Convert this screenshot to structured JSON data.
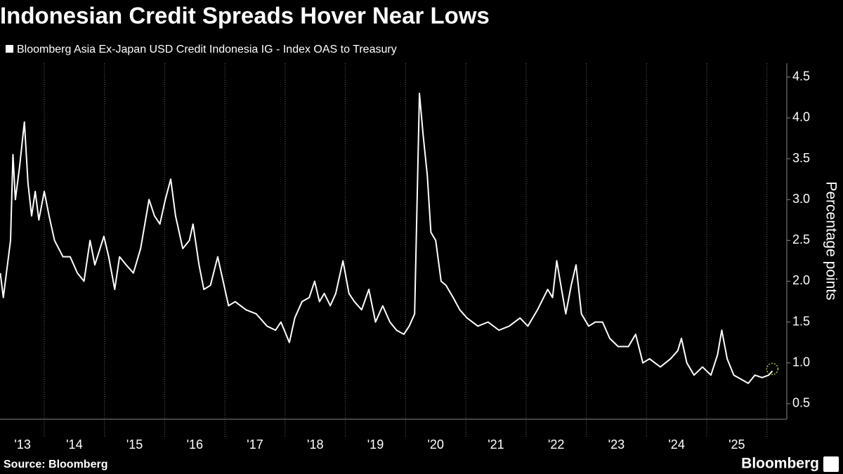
{
  "chart_data": {
    "type": "line",
    "title": "Indonesian Credit Spreads Hover Near Lows",
    "y_label": "Percentage points",
    "source": "Source: Bloomberg",
    "brand": "Bloomberg",
    "xlim": [
      2013.265,
      2026.33
    ],
    "ylim": [
      0.31,
      4.67
    ],
    "xticks": [
      {
        "value": 2013.64,
        "label": "'13"
      },
      {
        "value": 2014.5,
        "label": "'14"
      },
      {
        "value": 2015.5,
        "label": "'15"
      },
      {
        "value": 2016.5,
        "label": "'16"
      },
      {
        "value": 2017.5,
        "label": "'17"
      },
      {
        "value": 2018.5,
        "label": "'18"
      },
      {
        "value": 2019.5,
        "label": "'19"
      },
      {
        "value": 2020.5,
        "label": "'20"
      },
      {
        "value": 2021.5,
        "label": "'21"
      },
      {
        "value": 2022.5,
        "label": "'22"
      },
      {
        "value": 2023.5,
        "label": "'23"
      },
      {
        "value": 2024.5,
        "label": "'24"
      },
      {
        "value": 2025.5,
        "label": "'25"
      }
    ],
    "xgrid": [
      2014,
      2015,
      2016,
      2017,
      2018,
      2019,
      2020,
      2021,
      2022,
      2023,
      2024,
      2025,
      2026
    ],
    "yticks": [
      0.5,
      {
        "value": 1,
        "label": "1.0"
      },
      1.5,
      {
        "value": 2,
        "label": "2.0"
      },
      2.5,
      {
        "value": 3,
        "label": "3.0"
      },
      3.5,
      {
        "value": 4,
        "label": "4.0"
      },
      4.5
    ],
    "series": [
      {
        "name": "Bloomberg Asia Ex-Japan USD Credit Indonesia IG - Index OAS to Treasury",
        "color": "#ffffff",
        "x": [
          2013.27,
          2013.32,
          2013.44,
          2013.48,
          2013.52,
          2013.59,
          2013.67,
          2013.73,
          2013.79,
          2013.85,
          2013.91,
          2014.0,
          2014.08,
          2014.17,
          2014.31,
          2014.43,
          2014.55,
          2014.66,
          2014.76,
          2014.84,
          2014.99,
          2015.07,
          2015.17,
          2015.25,
          2015.36,
          2015.48,
          2015.6,
          2015.74,
          2015.83,
          2015.92,
          2016.01,
          2016.1,
          2016.18,
          2016.3,
          2016.41,
          2016.47,
          2016.57,
          2016.65,
          2016.76,
          2016.88,
          2016.97,
          2017.06,
          2017.17,
          2017.35,
          2017.52,
          2017.7,
          2017.84,
          2017.93,
          2018.07,
          2018.16,
          2018.28,
          2018.4,
          2018.49,
          2018.57,
          2018.65,
          2018.75,
          2018.84,
          2018.96,
          2019.06,
          2019.15,
          2019.27,
          2019.39,
          2019.5,
          2019.62,
          2019.74,
          2019.85,
          2019.97,
          2020.06,
          2020.15,
          2020.23,
          2020.29,
          2020.36,
          2020.42,
          2020.5,
          2020.59,
          2020.67,
          2020.79,
          2020.9,
          2021.02,
          2021.2,
          2021.37,
          2021.55,
          2021.72,
          2021.9,
          2022.03,
          2022.19,
          2022.36,
          2022.44,
          2022.51,
          2022.59,
          2022.66,
          2022.75,
          2022.83,
          2022.92,
          2023.04,
          2023.15,
          2023.27,
          2023.39,
          2023.53,
          2023.7,
          2023.82,
          2023.94,
          2024.05,
          2024.23,
          2024.4,
          2024.52,
          2024.58,
          2024.67,
          2024.79,
          2024.93,
          2025.07,
          2025.18,
          2025.25,
          2025.34,
          2025.45,
          2025.57,
          2025.69,
          2025.8,
          2025.92,
          2026.03,
          2026.09
        ],
        "values": [
          2.1,
          1.8,
          2.5,
          3.55,
          3.0,
          3.4,
          3.95,
          3.2,
          2.8,
          3.1,
          2.75,
          3.1,
          2.8,
          2.5,
          2.3,
          2.3,
          2.1,
          2.0,
          2.5,
          2.2,
          2.55,
          2.3,
          1.9,
          2.3,
          2.2,
          2.1,
          2.4,
          3.0,
          2.8,
          2.7,
          3.0,
          3.25,
          2.8,
          2.4,
          2.5,
          2.7,
          2.2,
          1.9,
          1.95,
          2.3,
          2.0,
          1.7,
          1.75,
          1.65,
          1.6,
          1.45,
          1.4,
          1.5,
          1.25,
          1.55,
          1.75,
          1.8,
          2.0,
          1.75,
          1.85,
          1.7,
          1.85,
          2.25,
          1.85,
          1.75,
          1.65,
          1.9,
          1.5,
          1.7,
          1.5,
          1.4,
          1.35,
          1.45,
          1.6,
          4.3,
          3.8,
          3.3,
          2.6,
          2.5,
          2.0,
          1.95,
          1.8,
          1.65,
          1.55,
          1.45,
          1.5,
          1.4,
          1.45,
          1.55,
          1.45,
          1.65,
          1.9,
          1.8,
          2.25,
          1.9,
          1.6,
          1.95,
          2.2,
          1.6,
          1.45,
          1.5,
          1.5,
          1.3,
          1.2,
          1.2,
          1.35,
          1.0,
          1.05,
          0.95,
          1.05,
          1.15,
          1.3,
          1.0,
          0.85,
          0.95,
          0.85,
          1.1,
          1.4,
          1.05,
          0.85,
          0.8,
          0.75,
          0.85,
          0.82,
          0.85,
          0.9
        ]
      }
    ]
  }
}
